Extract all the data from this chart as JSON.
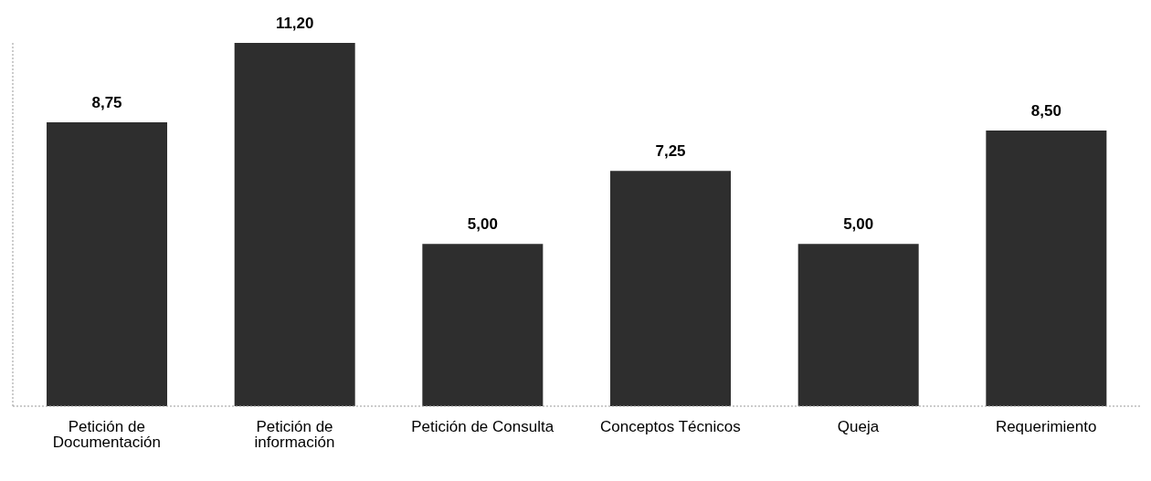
{
  "chart_data": {
    "type": "bar",
    "categories": [
      "Petición de Documentación",
      "Petición de información",
      "Petición de Consulta",
      "Conceptos Técnicos",
      "Queja",
      "Requerimiento"
    ],
    "values": [
      8.75,
      11.2,
      5,
      7.25,
      5,
      8.5
    ],
    "value_labels": [
      "8,75",
      "11,20",
      "5,00",
      "7,25",
      "5,00",
      "8,50"
    ],
    "color": "#2e2e2e",
    "relative": false,
    "grid": false,
    "legend": false
  }
}
